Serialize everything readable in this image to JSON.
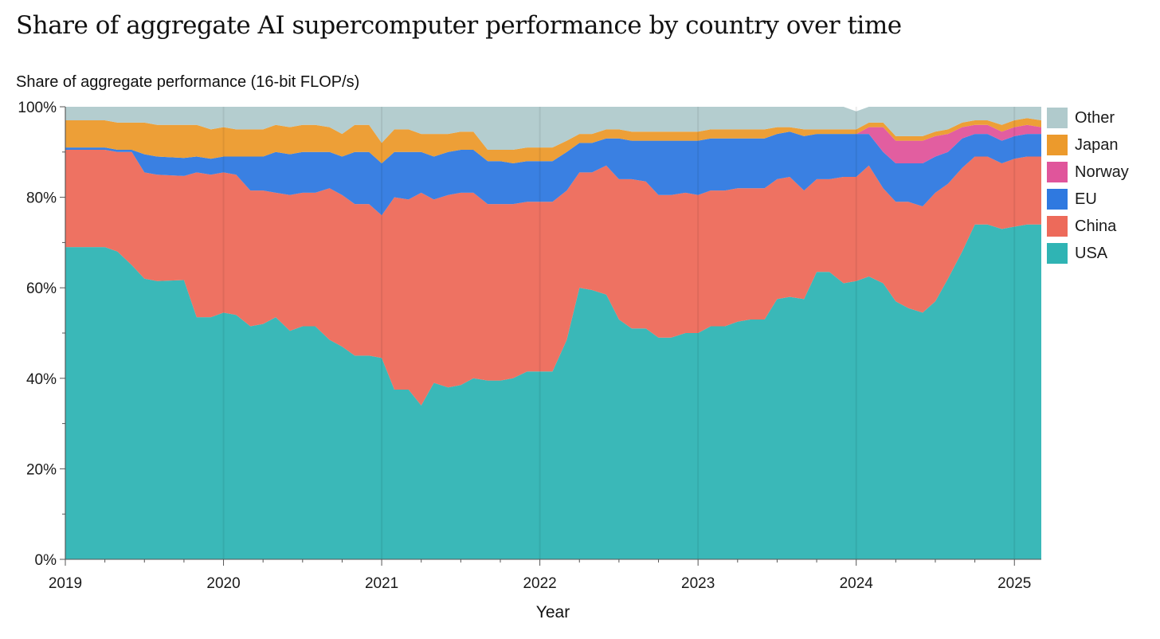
{
  "chart_data": {
    "type": "area",
    "stacked": true,
    "title": "Share of aggregate AI supercomputer performance by country over time",
    "ylabel": "Share of aggregate performance (16-bit FLOP/s)",
    "xlabel": "Year",
    "xlim": [
      2019.0,
      2025.17
    ],
    "ylim": [
      0,
      100
    ],
    "x_ticks": [
      "2019",
      "2020",
      "2021",
      "2022",
      "2023",
      "2024",
      "2025"
    ],
    "y_ticks": [
      "0%",
      "20%",
      "40%",
      "60%",
      "80%",
      "100%"
    ],
    "legend_position": "right",
    "x": [
      2019.0,
      2019.25,
      2019.33,
      2019.42,
      2019.5,
      2019.58,
      2019.75,
      2019.83,
      2019.92,
      2020.0,
      2020.08,
      2020.17,
      2020.25,
      2020.33,
      2020.42,
      2020.5,
      2020.58,
      2020.67,
      2020.75,
      2020.83,
      2020.92,
      2021.0,
      2021.08,
      2021.17,
      2021.25,
      2021.33,
      2021.42,
      2021.5,
      2021.58,
      2021.67,
      2021.75,
      2021.83,
      2021.92,
      2022.0,
      2022.08,
      2022.17,
      2022.25,
      2022.33,
      2022.42,
      2022.5,
      2022.58,
      2022.67,
      2022.75,
      2022.83,
      2022.92,
      2023.0,
      2023.08,
      2023.17,
      2023.25,
      2023.33,
      2023.42,
      2023.5,
      2023.58,
      2023.67,
      2023.75,
      2023.83,
      2023.92,
      2024.0,
      2024.08,
      2024.17,
      2024.25,
      2024.33,
      2024.42,
      2024.5,
      2024.58,
      2024.67,
      2024.75,
      2024.83,
      2024.92,
      2025.0,
      2025.08,
      2025.17
    ],
    "series": [
      {
        "name": "USA",
        "color": "#2fb4b4",
        "values": [
          69,
          69,
          68,
          65,
          62,
          61.5,
          61.7,
          53.5,
          53.5,
          54.5,
          54,
          51.5,
          52,
          53.5,
          50.5,
          51.5,
          51.5,
          48.5,
          47,
          45,
          45,
          44.5,
          37.5,
          37.5,
          34,
          39,
          38,
          38.5,
          40,
          39.5,
          39.5,
          40,
          41.5,
          41.5,
          41.5,
          48.5,
          60,
          59.5,
          58.5,
          53,
          51,
          51,
          49,
          49,
          50,
          50,
          51.5,
          51.5,
          52.5,
          53,
          53,
          57.5,
          58,
          57.5,
          63.5,
          63.5,
          61,
          61.5,
          62.5,
          61,
          57,
          55.5,
          54.5,
          57,
          62,
          68,
          74,
          74,
          73,
          73.5,
          74,
          74
        ]
      },
      {
        "name": "China",
        "color": "#ed6a5a",
        "values": [
          21.5,
          21.5,
          22,
          25,
          23.5,
          23.5,
          23,
          32,
          31.5,
          31,
          31,
          30,
          29.5,
          27.5,
          30,
          29.5,
          29.5,
          33.5,
          33.5,
          33.5,
          33.5,
          31.5,
          42.5,
          42,
          47,
          40.5,
          42.5,
          42.5,
          41,
          39,
          39,
          38.5,
          37.5,
          37.5,
          37.5,
          33,
          25.5,
          26,
          28.5,
          31,
          33,
          32.5,
          31.5,
          31.5,
          31,
          30.5,
          30,
          30,
          29.5,
          29,
          29,
          26.5,
          26.5,
          24,
          20.5,
          20.5,
          23.5,
          23,
          24.5,
          21,
          22,
          23.5,
          23.5,
          24,
          21,
          18.5,
          15,
          15,
          14.5,
          15,
          15,
          15
        ]
      },
      {
        "name": "EU",
        "color": "#2f79e0",
        "values": [
          0.5,
          0.5,
          0.5,
          0.5,
          4,
          4,
          4,
          3.5,
          3.5,
          3.5,
          4,
          7.5,
          7.5,
          9,
          9,
          9,
          9,
          8,
          8.5,
          11.5,
          11.5,
          11.5,
          10,
          10.5,
          9,
          9.5,
          9.5,
          9.5,
          9.5,
          9.5,
          9.5,
          9,
          9,
          9,
          9,
          8.5,
          6.5,
          6.5,
          6,
          9,
          8.5,
          9,
          12,
          12,
          11.5,
          12,
          11.5,
          11.5,
          11,
          11,
          11,
          10,
          10,
          12,
          10,
          10,
          9.5,
          9.5,
          7,
          8,
          8.5,
          8.5,
          9.5,
          8,
          7,
          6.5,
          5,
          5,
          5,
          5,
          5,
          5
        ]
      },
      {
        "name": "Norway",
        "color": "#e0559b",
        "values": [
          0,
          0,
          0,
          0,
          0,
          0,
          0,
          0,
          0,
          0,
          0,
          0,
          0,
          0,
          0,
          0,
          0,
          0,
          0,
          0,
          0,
          0,
          0,
          0,
          0,
          0,
          0,
          0,
          0,
          0,
          0,
          0,
          0,
          0,
          0,
          0,
          0,
          0,
          0,
          0,
          0,
          0,
          0,
          0,
          0,
          0,
          0,
          0,
          0,
          0,
          0,
          0,
          0,
          0,
          0,
          0,
          0,
          0,
          1.5,
          5.5,
          5,
          5,
          5,
          4.5,
          4,
          2.5,
          2,
          2,
          2,
          2,
          2,
          1.5
        ]
      },
      {
        "name": "Japan",
        "color": "#ec9a2c",
        "values": [
          6,
          6,
          6,
          6,
          7,
          7,
          7.3,
          7,
          6.5,
          6.5,
          6,
          6,
          6,
          6,
          6,
          6,
          6,
          5.5,
          5,
          6,
          6,
          4.5,
          5,
          5,
          4,
          5,
          4,
          4,
          4,
          2.5,
          2.5,
          3,
          3,
          3,
          3,
          2.5,
          2,
          2,
          2,
          2,
          2,
          2,
          2,
          2,
          2,
          2,
          2,
          2,
          2,
          2,
          2,
          1.5,
          1,
          1.5,
          1,
          1,
          1,
          1,
          1,
          1,
          1,
          1,
          1,
          1,
          1,
          1,
          1,
          1,
          1.5,
          1.5,
          1.5,
          1.5
        ]
      },
      {
        "name": "Other",
        "color": "#b0cacc",
        "values": [
          3,
          3,
          3.5,
          3.5,
          3.5,
          4,
          4,
          4,
          5,
          4.5,
          5,
          5,
          5,
          4,
          4.5,
          4,
          4,
          4.5,
          6,
          4,
          4,
          8,
          5,
          5,
          6,
          6,
          6,
          5.5,
          5.5,
          9.5,
          9.5,
          9.5,
          9,
          9,
          9,
          7.5,
          6,
          6,
          5,
          5,
          5.5,
          5.5,
          5.5,
          5.5,
          5.5,
          5.5,
          5,
          5,
          5,
          5,
          5,
          4.5,
          4.5,
          5,
          5,
          5,
          5,
          4,
          3.5,
          3.5,
          6.5,
          6.5,
          6.5,
          5.5,
          5,
          3.5,
          3,
          3,
          4,
          3,
          2.5,
          3
        ]
      }
    ]
  }
}
